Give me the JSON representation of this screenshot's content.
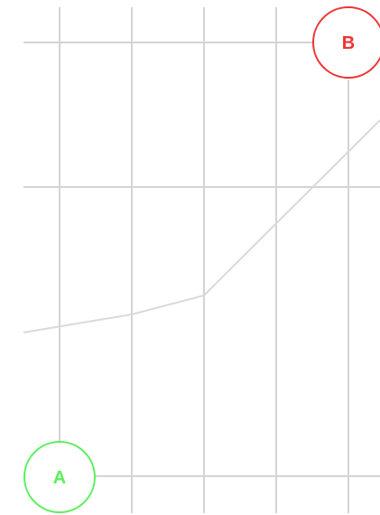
{
  "colors": {
    "grid": "#d4d4d4",
    "path": "#d9d9d9",
    "start": "#5cf05c",
    "end": "#f03232",
    "background": "#ffffff"
  },
  "markers": {
    "start": {
      "label": "A",
      "color": "#5cf05c"
    },
    "end": {
      "label": "B",
      "color": "#f03232"
    }
  }
}
